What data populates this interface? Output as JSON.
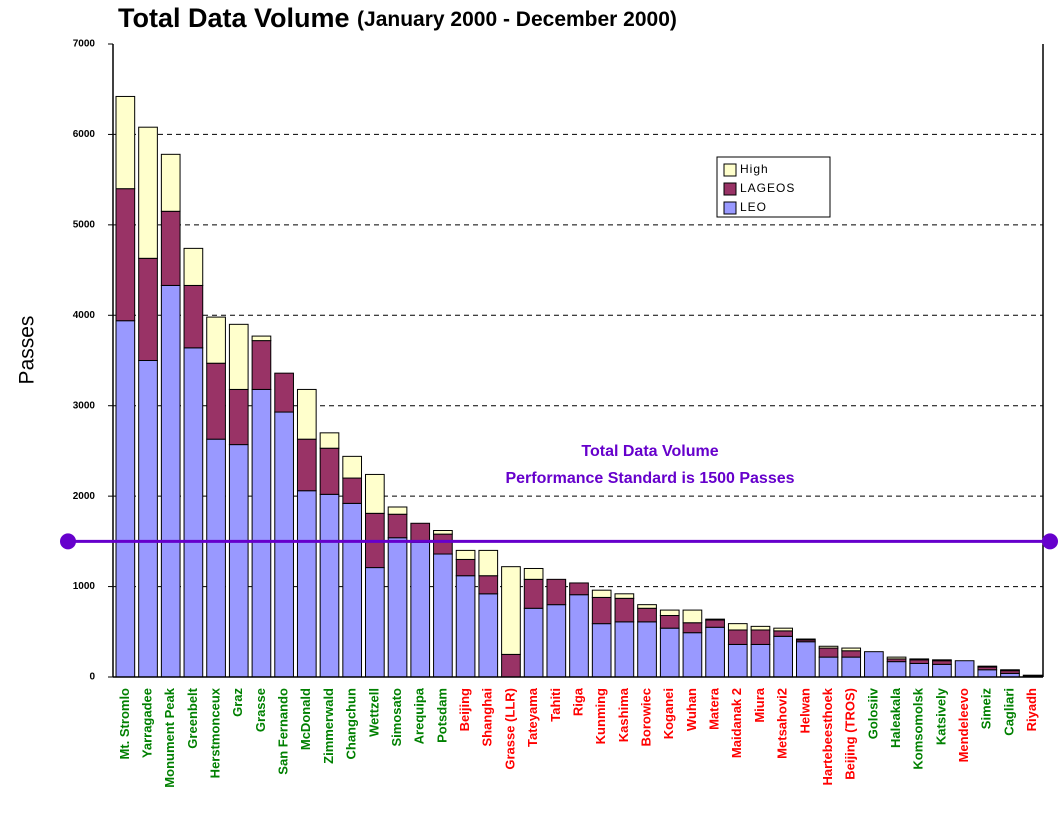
{
  "chart_data": {
    "type": "stacked_bar",
    "title": "Total Data Volume",
    "subtitle": "(January 2000 - December 2000)",
    "y_label": "Passes",
    "annotation": [
      "Total Data Volume",
      "Performance Standard is 1500 Passes"
    ],
    "reference_line": 1500,
    "reference_color": "#6600cc",
    "categories": [
      "Mt. Stromlo",
      "Yarragadee",
      "Monument Peak",
      "Greenbelt",
      "Herstmonceux",
      "Graz",
      "Grasse",
      "San Fernando",
      "McDonald",
      "Zimmerwald",
      "Changchun",
      "Wettzell",
      "Simosato",
      "Arequipa",
      "Potsdam",
      "Beijing",
      "Shanghai",
      "Grasse (LLR)",
      "Tateyama",
      "Tahiti",
      "Riga",
      "Kunming",
      "Kashima",
      "Borowiec",
      "Koganei",
      "Wuhan",
      "Matera",
      "Maidanak 2",
      "Miura",
      "Metsahovi2",
      "Helwan",
      "Hartebeesthoek",
      "Beijing (TROS)",
      "Golosiiv",
      "Haleakala",
      "Komsomolsk",
      "Katsively",
      "Mendeleevo",
      "Simeiz",
      "Cagliari",
      "Riyadh"
    ],
    "category_colors": [
      "#008000",
      "#008000",
      "#008000",
      "#008000",
      "#008000",
      "#008000",
      "#008000",
      "#008000",
      "#008000",
      "#008000",
      "#008000",
      "#008000",
      "#008000",
      "#008000",
      "#008000",
      "#ff0000",
      "#ff0000",
      "#ff0000",
      "#ff0000",
      "#ff0000",
      "#ff0000",
      "#ff0000",
      "#ff0000",
      "#ff0000",
      "#ff0000",
      "#ff0000",
      "#ff0000",
      "#ff0000",
      "#ff0000",
      "#ff0000",
      "#ff0000",
      "#ff0000",
      "#ff0000",
      "#008000",
      "#008000",
      "#008000",
      "#008000",
      "#ff0000",
      "#008000",
      "#008000",
      "#ff0000"
    ],
    "series": [
      {
        "name": "LEO",
        "color": "#9999ff",
        "values": [
          3940,
          3500,
          4330,
          3640,
          2630,
          2570,
          3180,
          2930,
          2060,
          2020,
          1920,
          1210,
          1540,
          1490,
          1360,
          1120,
          920,
          0,
          760,
          800,
          910,
          590,
          610,
          610,
          540,
          490,
          550,
          360,
          360,
          450,
          390,
          220,
          220,
          280,
          170,
          150,
          140,
          180,
          80,
          40,
          10
        ]
      },
      {
        "name": "LAGEOS",
        "color": "#993366",
        "values": [
          1460,
          1130,
          820,
          690,
          840,
          610,
          540,
          430,
          570,
          510,
          280,
          600,
          260,
          210,
          220,
          180,
          200,
          250,
          320,
          280,
          130,
          290,
          260,
          150,
          140,
          110,
          80,
          160,
          160,
          60,
          20,
          100,
          70,
          0,
          30,
          40,
          40,
          0,
          30,
          30,
          0
        ]
      },
      {
        "name": "High",
        "color": "#ffffcc",
        "values": [
          1020,
          1450,
          630,
          410,
          510,
          720,
          50,
          0,
          550,
          170,
          240,
          430,
          80,
          0,
          40,
          100,
          280,
          970,
          120,
          0,
          0,
          80,
          50,
          40,
          60,
          140,
          10,
          70,
          40,
          30,
          10,
          20,
          30,
          0,
          20,
          10,
          10,
          0,
          10,
          10,
          10
        ]
      }
    ],
    "ylim": [
      0,
      7000
    ],
    "yticks": [
      0,
      1000,
      2000,
      3000,
      4000,
      5000,
      6000,
      7000
    ],
    "grid": true
  }
}
